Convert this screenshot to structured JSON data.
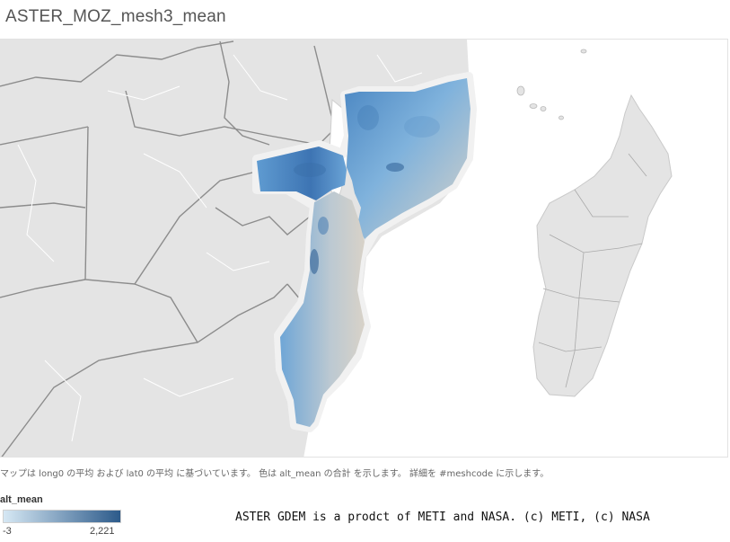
{
  "title": "ASTER_MOZ_mesh3_mean",
  "caption": "マップは long0 の平均 および lat0 の平均 に基づいています。 色は alt_mean の合計 を示します。 詳細を #meshcode に示します。",
  "legend": {
    "field": "alt_mean",
    "min": "-3",
    "max": "2,221",
    "color_low": "#d6e8f4",
    "color_high": "#2c5a8a"
  },
  "credit": "ASTER GDEM is a prodct of METI and NASA. (c) METI, (c) NASA",
  "colors": {
    "land": "#e2e2e2",
    "border": "#ffffff",
    "country_outline": "#8a8a8a",
    "ocean": "#ffffff",
    "elev_low": "#d8d2c8",
    "elev_mid": "#7fb2dc",
    "elev_high": "#3f7ab8"
  }
}
